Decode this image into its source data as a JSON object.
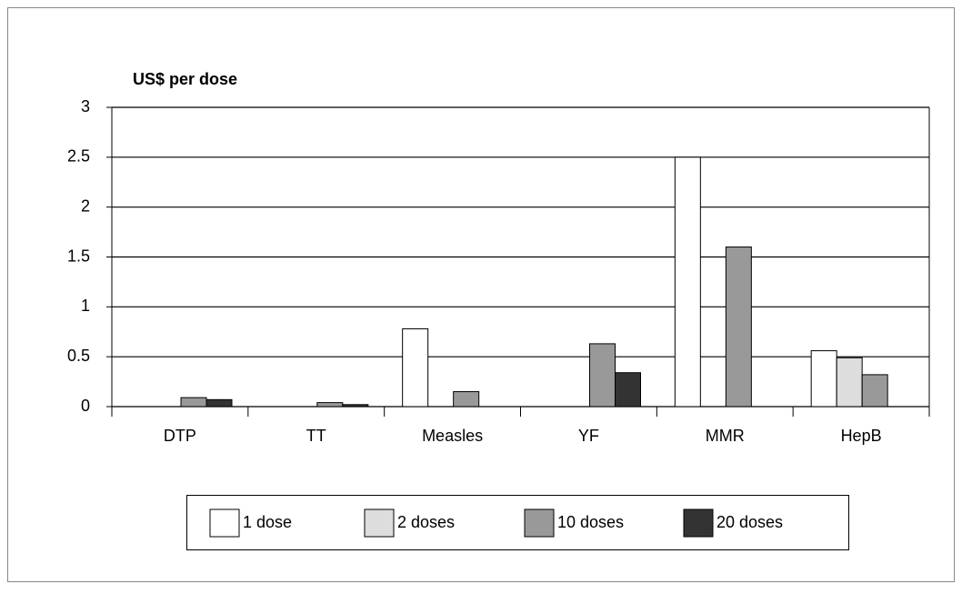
{
  "chart_data": {
    "type": "bar",
    "y_label": "US$ per dose",
    "categories": [
      "DTP",
      "TT",
      "Measles",
      "YF",
      "MMR",
      "HepB"
    ],
    "series": [
      {
        "name": "1 dose",
        "color": "#ffffff",
        "values": [
          null,
          null,
          0.78,
          null,
          2.5,
          0.56
        ]
      },
      {
        "name": "2 doses",
        "color": "#dddddd",
        "values": [
          null,
          null,
          null,
          null,
          null,
          0.49
        ]
      },
      {
        "name": "10 doses",
        "color": "#999999",
        "values": [
          0.09,
          0.04,
          0.15,
          0.63,
          1.6,
          0.32
        ]
      },
      {
        "name": "20 doses",
        "color": "#333333",
        "values": [
          0.07,
          0.02,
          null,
          0.34,
          null,
          null
        ]
      }
    ],
    "ylim": [
      0,
      3
    ],
    "yticks": [
      0,
      0.5,
      1,
      1.5,
      2,
      2.5,
      3
    ],
    "grid": true,
    "legend": "bottom"
  }
}
